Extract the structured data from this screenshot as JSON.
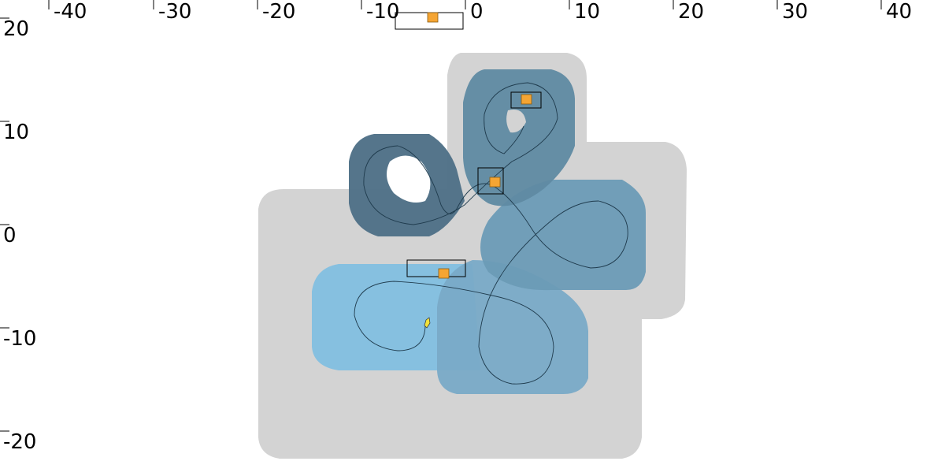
{
  "scale": {
    "x_labels": [
      "-40",
      "-30",
      "-20",
      "-10",
      "0",
      "10",
      "20",
      "30",
      "40"
    ],
    "y_labels": [
      "20",
      "10",
      "0",
      "-10",
      "-20"
    ]
  },
  "colors": {
    "background": "#ffffff",
    "gray_area": "#d3d3d3",
    "zone_dark": "#4f7187",
    "zone_mid": "#5f8aa2",
    "zone_light_mid": "#6b9bb6",
    "zone_lighter": "#79aac7",
    "zone_lightest": "#82bfe0",
    "marker_fill": "#f5a533",
    "marker_stroke": "#8a5a10",
    "track_line": "#1f3b4d",
    "vehicle": "#f2e23a",
    "box_stroke": "#000000"
  },
  "icons": {
    "marker": "orange-square-marker-icon",
    "vehicle": "yellow-vehicle-icon"
  }
}
